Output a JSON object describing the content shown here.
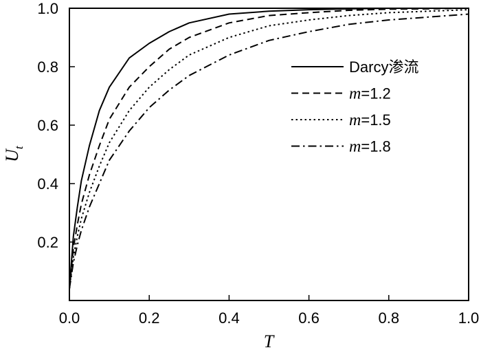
{
  "chart_data": {
    "type": "line",
    "title": "",
    "xlabel": "T",
    "ylabel": "U",
    "ylabel_subscript": "t",
    "xlim": [
      0.0,
      1.0
    ],
    "ylim": [
      0.0,
      1.0
    ],
    "x_ticks": [
      0.0,
      0.2,
      0.4,
      0.6,
      0.8,
      1.0
    ],
    "y_ticks": [
      0.2,
      0.4,
      0.6,
      0.8,
      1.0
    ],
    "x_tick_labels": [
      "0.0",
      "0.2",
      "0.4",
      "0.6",
      "0.8",
      "1.0"
    ],
    "y_tick_labels": [
      "0.2",
      "0.4",
      "0.6",
      "0.8",
      "1.0"
    ],
    "grid": false,
    "legend_position": "right",
    "x": [
      0.0,
      0.01,
      0.02,
      0.03,
      0.05,
      0.075,
      0.1,
      0.15,
      0.2,
      0.25,
      0.3,
      0.4,
      0.5,
      0.6,
      0.7,
      0.8,
      0.9,
      1.0
    ],
    "series": [
      {
        "name_prefix": "",
        "name_main": "Darcy渗流",
        "dash": "solid",
        "values": [
          0.04,
          0.22,
          0.32,
          0.41,
          0.53,
          0.65,
          0.73,
          0.83,
          0.88,
          0.92,
          0.95,
          0.98,
          0.99,
          0.995,
          0.998,
          1.0,
          1.0,
          1.0
        ]
      },
      {
        "name_prefix": "m",
        "name_main": "=1.2",
        "dash": "dashed",
        "values": [
          0.04,
          0.18,
          0.26,
          0.33,
          0.43,
          0.53,
          0.62,
          0.73,
          0.8,
          0.86,
          0.9,
          0.95,
          0.975,
          0.985,
          0.993,
          0.997,
          0.998,
          1.0
        ]
      },
      {
        "name_prefix": "m",
        "name_main": "=1.5",
        "dash": "dotted",
        "values": [
          0.04,
          0.15,
          0.22,
          0.28,
          0.37,
          0.46,
          0.54,
          0.65,
          0.73,
          0.79,
          0.84,
          0.9,
          0.94,
          0.96,
          0.975,
          0.985,
          0.99,
          0.995
        ]
      },
      {
        "name_prefix": "m",
        "name_main": "=1.8",
        "dash": "dashdot",
        "values": [
          0.04,
          0.13,
          0.19,
          0.24,
          0.32,
          0.4,
          0.48,
          0.58,
          0.66,
          0.72,
          0.77,
          0.84,
          0.89,
          0.92,
          0.945,
          0.96,
          0.97,
          0.98
        ]
      }
    ]
  }
}
